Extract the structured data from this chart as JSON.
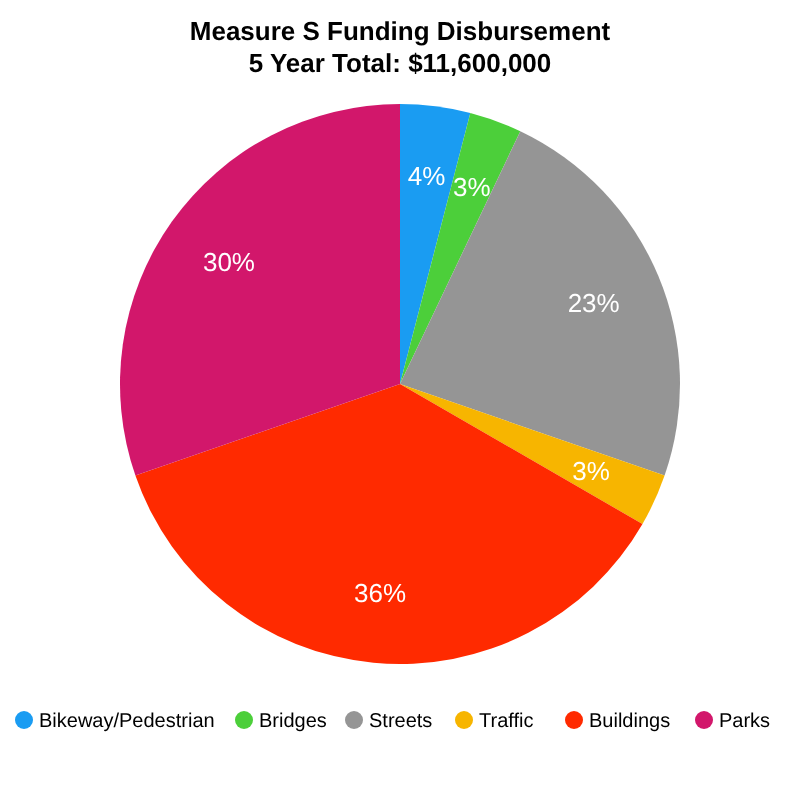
{
  "chart_data": {
    "type": "pie",
    "title": "Measure S Funding Disbursement",
    "subtitle": "5 Year Total: $11,600,000",
    "categories": [
      "Bikeway/Pedestrian",
      "Bridges",
      "Streets",
      "Traffic",
      "Buildings",
      "Parks"
    ],
    "values": [
      4,
      3,
      23,
      3,
      36,
      30
    ],
    "colors": [
      "#1a9cf2",
      "#4ccf3a",
      "#959595",
      "#f7b500",
      "#ff2a00",
      "#d2176b"
    ],
    "value_labels": [
      "4%",
      "3%",
      "23%",
      "3%",
      "36%",
      "30%"
    ],
    "legend": "bottom"
  }
}
